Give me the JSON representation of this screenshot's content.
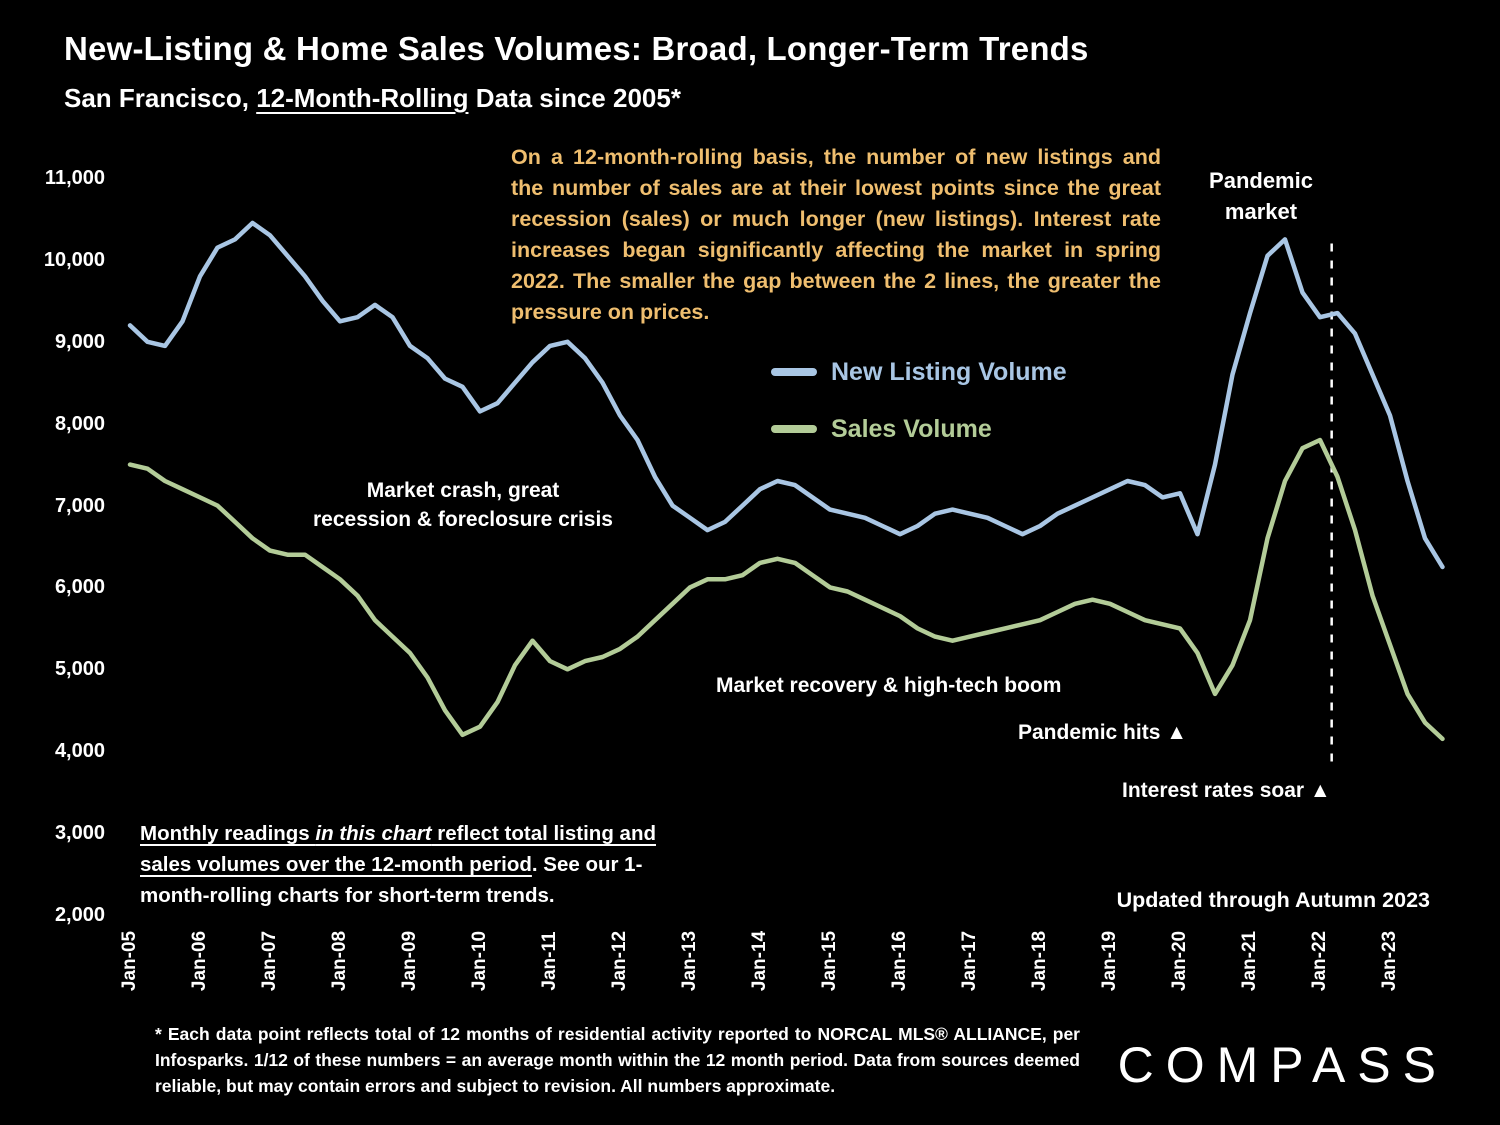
{
  "header": {
    "title": "New-Listing & Home Sales Volumes: Broad, Longer-Term Trends",
    "subtitle_prefix": "San Francisco, ",
    "subtitle_underline": "12-Month-Rolling",
    "subtitle_suffix": " Data since 2005*"
  },
  "commentary": "On a 12-month-rolling basis, the number of new listings and the number of sales are at their lowest points since the great recession (sales) or much longer (new listings). Interest rate increases began significantly affecting the market in spring 2022. The smaller the gap between the 2 lines, the greater the pressure on prices.",
  "labels": {
    "pandemic_market": "Pandemic\nmarket",
    "market_crash": "Market crash, great\nrecession & foreclosure crisis",
    "market_recovery": "Market recovery & high-tech boom",
    "pandemic_hits": "Pandemic hits  ▲",
    "interest_rates_soar": "Interest rates soar  ▲",
    "updated": "Updated through Autumn 2023"
  },
  "note_box": {
    "part1_underlined": "Monthly readings ",
    "part2_underlined_italic": "in this chart",
    "part3_underlined": " reflect total listing and sales volumes over the 12-month period",
    "part4": ". See our 1-month-rolling charts for short-term trends."
  },
  "footer": {
    "footnote": "* Each data point reflects total of 12 months of residential activity reported to NORCAL MLS® ALLIANCE, per Infosparks. 1/12 of these numbers = an average month within the 12 month period. Data from sources deemed reliable, but may contain errors and subject to revision. All numbers approximate.",
    "logo": "COMPASS"
  },
  "colors": {
    "background": "#000000",
    "text": "#ffffff",
    "commentary_text": "#efbe6f",
    "new_listing_line": "#a9c6e4",
    "sales_line": "#b3cc98",
    "dashed_marker": "#ffffff"
  },
  "chart_data": {
    "type": "line",
    "title": "New-Listing & Home Sales Volumes: Broad, Longer-Term Trends",
    "xlabel": "",
    "ylabel": "",
    "ylim": [
      2000,
      11000
    ],
    "grid": false,
    "legend_position": "upper middle",
    "y_ticks": [
      2000,
      3000,
      4000,
      5000,
      6000,
      7000,
      8000,
      9000,
      10000,
      11000
    ],
    "x_tick_labels": [
      "Jan-05",
      "Jan-06",
      "Jan-07",
      "Jan-08",
      "Jan-09",
      "Jan-10",
      "Jan-11",
      "Jan-12",
      "Jan-13",
      "Jan-14",
      "Jan-15",
      "Jan-16",
      "Jan-17",
      "Jan-18",
      "Jan-19",
      "Jan-20",
      "Jan-21",
      "Jan-22",
      "Jan-23"
    ],
    "x_months": [
      0,
      3,
      6,
      9,
      12,
      15,
      18,
      21,
      24,
      27,
      30,
      33,
      36,
      39,
      42,
      45,
      48,
      51,
      54,
      57,
      60,
      63,
      66,
      69,
      72,
      75,
      78,
      81,
      84,
      87,
      90,
      93,
      96,
      99,
      102,
      105,
      108,
      111,
      114,
      117,
      120,
      123,
      126,
      129,
      132,
      135,
      138,
      141,
      144,
      147,
      150,
      153,
      156,
      159,
      162,
      165,
      168,
      171,
      174,
      177,
      180,
      183,
      186,
      189,
      192,
      195,
      198,
      201,
      204,
      207,
      210,
      213,
      216,
      219,
      222,
      225
    ],
    "series": [
      {
        "name": "New Listing Volume",
        "color": "#a9c6e4",
        "values": [
          9200,
          9000,
          8950,
          9250,
          9800,
          10150,
          10250,
          10450,
          10300,
          10050,
          9800,
          9500,
          9250,
          9300,
          9450,
          9300,
          8950,
          8800,
          8550,
          8450,
          8150,
          8250,
          8500,
          8750,
          8950,
          9000,
          8800,
          8500,
          8100,
          7800,
          7350,
          7000,
          6850,
          6700,
          6800,
          7000,
          7200,
          7300,
          7250,
          7100,
          6950,
          6900,
          6850,
          6750,
          6650,
          6750,
          6900,
          6950,
          6900,
          6850,
          6750,
          6650,
          6750,
          6900,
          7000,
          7100,
          7200,
          7300,
          7250,
          7100,
          7150,
          6650,
          7500,
          8600,
          9350,
          10050,
          10250,
          9600,
          9300,
          9350,
          9100,
          8600,
          8100,
          7300,
          6600,
          6250
        ]
      },
      {
        "name": "Sales Volume",
        "color": "#b3cc98",
        "values": [
          7500,
          7450,
          7300,
          7200,
          7100,
          7000,
          6800,
          6600,
          6450,
          6400,
          6400,
          6250,
          6100,
          5900,
          5600,
          5400,
          5200,
          4900,
          4500,
          4200,
          4300,
          4600,
          5050,
          5350,
          5100,
          5000,
          5100,
          5150,
          5250,
          5400,
          5600,
          5800,
          6000,
          6100,
          6100,
          6150,
          6300,
          6350,
          6300,
          6150,
          6000,
          5950,
          5850,
          5750,
          5650,
          5500,
          5400,
          5350,
          5400,
          5450,
          5500,
          5550,
          5600,
          5700,
          5800,
          5850,
          5800,
          5700,
          5600,
          5550,
          5500,
          5200,
          4700,
          5050,
          5600,
          6600,
          7300,
          7700,
          7800,
          7350,
          6700,
          5900,
          5300,
          4700,
          4350,
          4150
        ]
      }
    ],
    "dashed_marker": {
      "month": 206,
      "value_top": 10200,
      "value_bottom": 3800
    }
  }
}
